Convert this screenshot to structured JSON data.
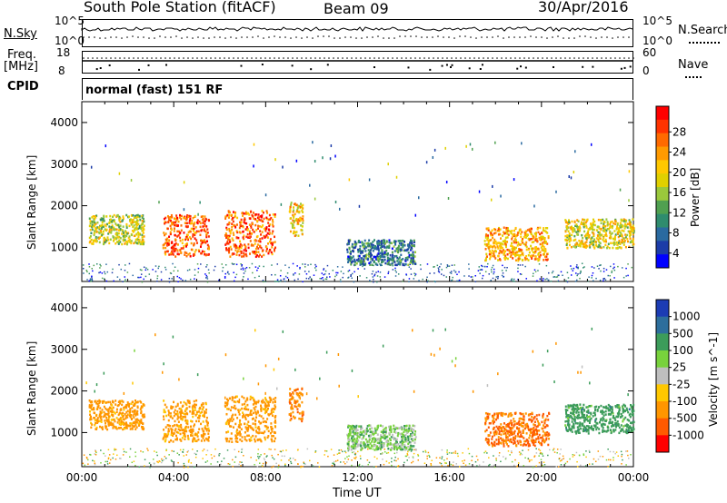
{
  "header": {
    "title": "South Pole Station (fitACF)",
    "beam": "Beam 09",
    "date": "30/Apr/2016"
  },
  "params": {
    "nsky_label": "N.Sky",
    "nsearch_label": "N.Search",
    "nsky_ticks": [
      "10^5",
      "10^0"
    ],
    "freq_label": "Freq.",
    "freq_unit": "[MHz]",
    "freq_ticks": [
      "18",
      "8"
    ],
    "nave_label": "Nave",
    "nave_ticks": [
      "60",
      "0"
    ],
    "cpid_label": "CPID",
    "cpid_value": "normal (fast) 151 RF"
  },
  "chart_data": [
    {
      "type": "heatmap",
      "name": "power",
      "ylabel": "Slant Range [km]",
      "yticks": [
        1000,
        2000,
        3000,
        4000
      ],
      "ylim": [
        180,
        4500
      ],
      "colorbar": {
        "label": "Power [dB]",
        "ticks": [
          "28",
          "24",
          "20",
          "16",
          "12",
          "8",
          "4"
        ],
        "colors": [
          "#ff0000",
          "#ff3300",
          "#ff6a00",
          "#ff9a00",
          "#ffc800",
          "#e0d000",
          "#9ac83c",
          "#50a050",
          "#2f8c6e",
          "#2a6aa0",
          "#1c3ca8",
          "#0000ff"
        ]
      },
      "regions": [
        {
          "t": [
            0.3,
            2.7
          ],
          "r": [
            1100,
            1800
          ],
          "val": 16
        },
        {
          "t": [
            3.5,
            5.5
          ],
          "r": [
            800,
            1800
          ],
          "val": 26
        },
        {
          "t": [
            6.2,
            8.4
          ],
          "r": [
            800,
            1900
          ],
          "val": 26
        },
        {
          "t": [
            9.0,
            9.6
          ],
          "r": [
            1300,
            2100
          ],
          "val": 20
        },
        {
          "t": [
            11.5,
            14.5
          ],
          "r": [
            600,
            1200
          ],
          "val": 8
        },
        {
          "t": [
            17.5,
            20.3
          ],
          "r": [
            700,
            1500
          ],
          "val": 22
        },
        {
          "t": [
            21.0,
            24.0
          ],
          "r": [
            1000,
            1700
          ],
          "val": 18
        }
      ]
    },
    {
      "type": "heatmap",
      "name": "velocity",
      "ylabel": "Slant Range [km]",
      "yticks": [
        1000,
        2000,
        3000,
        4000
      ],
      "ylim": [
        180,
        4500
      ],
      "colorbar": {
        "label": "Velocity [m s^-1]",
        "ticks": [
          "1000",
          "500",
          "100",
          "25",
          "-25",
          "-100",
          "-500",
          "-1000"
        ],
        "colors": [
          "#1c3cb4",
          "#2d6e9c",
          "#3c9c5a",
          "#78d23c",
          "#bebebe",
          "#ffc800",
          "#ff9600",
          "#ff5a00",
          "#ff0000"
        ]
      },
      "regions": [
        {
          "t": [
            0.3,
            2.7
          ],
          "r": [
            1100,
            1800
          ],
          "val": -250
        },
        {
          "t": [
            3.5,
            5.5
          ],
          "r": [
            800,
            1800
          ],
          "val": -200
        },
        {
          "t": [
            6.2,
            8.4
          ],
          "r": [
            800,
            1900
          ],
          "val": -250
        },
        {
          "t": [
            9.0,
            9.6
          ],
          "r": [
            1300,
            2100
          ],
          "val": -400
        },
        {
          "t": [
            11.5,
            14.5
          ],
          "r": [
            600,
            1200
          ],
          "val": 60
        },
        {
          "t": [
            17.5,
            20.3
          ],
          "r": [
            700,
            1500
          ],
          "val": -600
        },
        {
          "t": [
            21.0,
            24.0
          ],
          "r": [
            1000,
            1700
          ],
          "val": 300
        }
      ]
    }
  ],
  "xaxis": {
    "label": "Time UT",
    "ticks": [
      "00:00",
      "04:00",
      "08:00",
      "12:00",
      "16:00",
      "20:00",
      "00:00"
    ]
  }
}
